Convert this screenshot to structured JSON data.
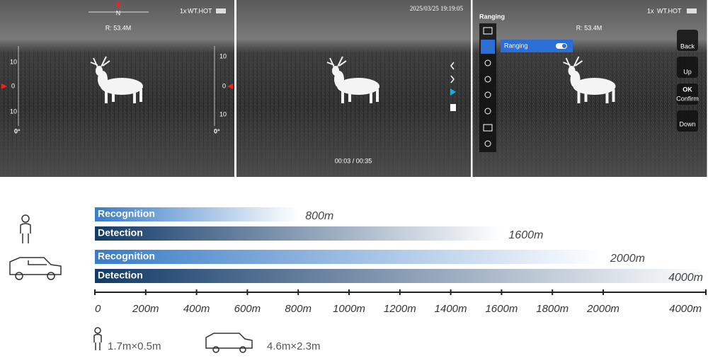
{
  "screens": [
    {
      "zoom": "1x",
      "palette": "WT.HOT",
      "compass": "N",
      "range": "R: 53.4M",
      "left_scale": [
        "10",
        "0",
        "10"
      ],
      "right_scale": [
        "10",
        "0",
        "10"
      ],
      "left_angle": "0°",
      "right_angle": "0°"
    },
    {
      "timestamp": "2025/03/25 19:19:05",
      "playback": "00:03 / 00:35"
    },
    {
      "menu_title": "Ranging",
      "zoom": "1x",
      "palette": "WT.HOT",
      "range": "R: 53.4M",
      "menu_item": "Ranging",
      "buttons": [
        "Back",
        "Up",
        "OK",
        "Confirm",
        "Down"
      ]
    }
  ],
  "chart_data": {
    "type": "bar",
    "orientation": "horizontal",
    "categories": [
      "1.7m×0.5m",
      "4.6m×2.3m"
    ],
    "series": [
      {
        "name": "Recognition",
        "color": "#3a7cc6",
        "values": [
          800,
          2000
        ],
        "value_labels": [
          "800m",
          "2000m"
        ]
      },
      {
        "name": "Detection",
        "color": "#123a68",
        "values": [
          1600,
          4000
        ],
        "value_labels": [
          "1600m",
          "4000m"
        ]
      }
    ],
    "xlim": [
      0,
      4000
    ],
    "xticks": [
      0,
      {
        "value": 200,
        "label": "200m"
      },
      {
        "value": 400,
        "label": "400m"
      },
      {
        "value": 600,
        "label": "600m"
      },
      {
        "value": 800,
        "label": "800m"
      },
      {
        "value": 1000,
        "label": "1000m"
      },
      {
        "value": 1200,
        "label": "1200m"
      },
      {
        "value": 1400,
        "label": "1400m"
      },
      {
        "value": 1600,
        "label": "1600m"
      },
      {
        "value": 1800,
        "label": "1800m"
      },
      {
        "value": 2000,
        "label": "2000m"
      },
      {
        "value": 4000,
        "label": "4000m"
      }
    ]
  }
}
